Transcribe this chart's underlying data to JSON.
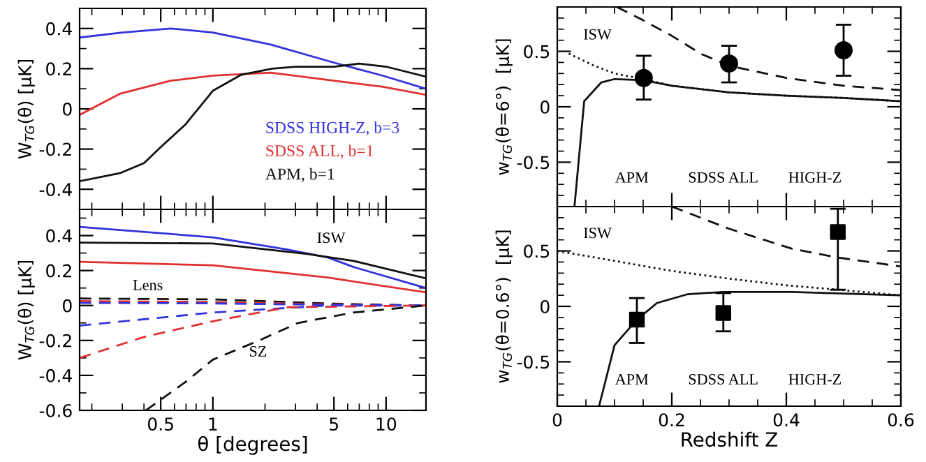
{
  "chart_data": [
    {
      "type": "line",
      "ylabel": "W$_{TG}$(θ) [μK]",
      "log": "x",
      "xlim": [
        0.17,
        17
      ],
      "xticks": [
        0.5,
        1,
        5,
        10
      ],
      "ylim": [
        -0.5,
        0.5
      ],
      "yticks": [
        -0.4,
        -0.2,
        0,
        0.2,
        0.4
      ],
      "tick_labels": "y",
      "legend": "bottom right",
      "grid": false,
      "series": [
        {
          "name": "SDSS HIGH-Z, b=3",
          "color": "#3333dd",
          "line_style": "solid",
          "x": [
            0.17,
            0.3,
            0.57,
            1,
            2.16,
            5,
            9.6,
            17
          ],
          "values": [
            0.355,
            0.38,
            0.4,
            0.38,
            0.32,
            0.23,
            0.165,
            0.1
          ]
        },
        {
          "name": "SDSS ALL, b=1",
          "color": "#e03030",
          "line_style": "solid",
          "x": [
            0.17,
            0.29,
            0.57,
            1,
            2.16,
            5,
            9.6,
            17
          ],
          "values": [
            -0.03,
            0.075,
            0.14,
            0.165,
            0.18,
            0.14,
            0.11,
            0.07
          ]
        },
        {
          "name": "APM, b=1",
          "color": "#111111",
          "line_style": "solid",
          "x": [
            0.17,
            0.29,
            0.4,
            0.5,
            0.69,
            1,
            1.46,
            2.2,
            3,
            5,
            7,
            10,
            17
          ],
          "values": [
            -0.36,
            -0.32,
            -0.27,
            -0.19,
            -0.08,
            0.09,
            0.17,
            0.2,
            0.21,
            0.21,
            0.225,
            0.21,
            0.16
          ]
        }
      ]
    },
    {
      "type": "line",
      "ylabel": "W$_{TG}$(θ) [μK]",
      "xlabel": "θ [degrees]",
      "log": "x",
      "xlim": [
        0.17,
        17
      ],
      "xticks": [
        0.5,
        1,
        5,
        10
      ],
      "ylim": [
        -0.6,
        0.55
      ],
      "yticks": [
        -0.6,
        -0.4,
        -0.2,
        0,
        0.2,
        0.4
      ],
      "grid": false,
      "annotations": [
        "ISW",
        "Lens",
        "SZ"
      ],
      "series": [
        {
          "color": "#3333dd",
          "line_style": "solid",
          "x": [
            0.17,
            1,
            2.7,
            4.6,
            6.5,
            17
          ],
          "values": [
            0.45,
            0.39,
            0.32,
            0.275,
            0.22,
            0.1
          ]
        },
        {
          "color": "#111111",
          "line_style": "solid",
          "x": [
            0.17,
            1,
            3.5,
            6.5,
            17
          ],
          "values": [
            0.36,
            0.355,
            0.295,
            0.255,
            0.155
          ]
        },
        {
          "color": "#e03030",
          "line_style": "solid",
          "x": [
            0.17,
            1,
            4.6,
            17
          ],
          "values": [
            0.25,
            0.23,
            0.16,
            0.075
          ]
        },
        {
          "color": "#111111",
          "line_style": "dashed",
          "x": [
            0.17,
            1,
            5,
            17
          ],
          "values": [
            0.04,
            0.035,
            0.01,
            0
          ]
        },
        {
          "color": "#e03030",
          "line_style": "dashed",
          "x": [
            0.17,
            1,
            5,
            17
          ],
          "values": [
            0.025,
            0.02,
            0.005,
            0
          ]
        },
        {
          "color": "#3333dd",
          "line_style": "dashed",
          "x": [
            0.17,
            1,
            5,
            17
          ],
          "values": [
            0.015,
            0.012,
            0.003,
            0
          ]
        },
        {
          "color": "#3333dd",
          "line_style": "dashed",
          "x": [
            0.17,
            1,
            4.6,
            17
          ],
          "values": [
            -0.115,
            -0.04,
            0,
            0
          ]
        },
        {
          "color": "#e03030",
          "line_style": "dashed",
          "x": [
            0.17,
            0.4,
            1,
            2.7,
            17
          ],
          "values": [
            -0.3,
            -0.18,
            -0.09,
            -0.01,
            0
          ]
        },
        {
          "color": "#111111",
          "line_style": "dashed",
          "x": [
            0.41,
            0.69,
            1,
            1.85,
            3.1,
            6.5,
            17
          ],
          "values": [
            -0.6,
            -0.44,
            -0.31,
            -0.2,
            -0.1,
            -0.04,
            0
          ]
        }
      ]
    },
    {
      "type": "line",
      "ylabel": "w$_{TG}$(θ=6°)  [μK]",
      "xlim": [
        0,
        0.6
      ],
      "xticks": [
        0,
        0.2,
        0.4,
        0.6
      ],
      "ylim": [
        -0.9,
        0.9
      ],
      "yticks": [
        -0.5,
        0,
        0.5
      ],
      "tick_labels": "y",
      "grid": false,
      "annotations": [
        "ISW",
        "APM",
        "SDSS ALL",
        "HIGH-Z"
      ],
      "series": [
        {
          "color": "#111111",
          "line_style": "solid",
          "x": [
            0.03,
            0.047,
            0.077,
            0.1,
            0.15,
            0.2,
            0.3,
            0.4,
            0.5,
            0.6
          ],
          "values": [
            -0.9,
            0.05,
            0.22,
            0.25,
            0.24,
            0.19,
            0.13,
            0.1,
            0.08,
            0.05
          ]
        },
        {
          "color": "#111111",
          "line_style": "dotted",
          "x": [
            0.02,
            0.06,
            0.1,
            0.15,
            0.2,
            0.3,
            0.4,
            0.5,
            0.6
          ],
          "values": [
            0.48,
            0.38,
            0.3,
            0.25,
            0.19,
            0.13,
            0.1,
            0.08,
            0.05
          ]
        },
        {
          "color": "#111111",
          "line_style": "dashed",
          "x": [
            0.104,
            0.15,
            0.2,
            0.25,
            0.3,
            0.4,
            0.5,
            0.6
          ],
          "values": [
            0.9,
            0.78,
            0.64,
            0.48,
            0.37,
            0.26,
            0.19,
            0.15
          ]
        },
        {
          "type": "scatter",
          "color": "#000000",
          "marker": "circle",
          "x": [
            0.151,
            0.3,
            0.5
          ],
          "values": [
            0.26,
            0.39,
            0.51
          ],
          "errors": [
            [
              0.065,
              0.46
            ],
            [
              0.22,
              0.55
            ],
            [
              0.28,
              0.74
            ]
          ]
        }
      ]
    },
    {
      "type": "line",
      "ylabel": "w$_{TG}$(θ=0.6°)  [μK]",
      "xlabel": "Redshift Z",
      "xlim": [
        0,
        0.6
      ],
      "xticks": [
        0,
        0.2,
        0.4,
        0.6
      ],
      "ylim": [
        -0.9,
        0.9
      ],
      "yticks": [
        -0.5,
        0,
        0.5
      ],
      "grid": false,
      "annotations": [
        "ISW",
        "APM",
        "SDSS ALL",
        "HIGH-Z"
      ],
      "series": [
        {
          "color": "#111111",
          "line_style": "solid",
          "x": [
            0.073,
            0.1,
            0.139,
            0.174,
            0.228,
            0.29,
            0.41,
            0.6
          ],
          "values": [
            -0.9,
            -0.35,
            -0.12,
            0.03,
            0.11,
            0.13,
            0.13,
            0.1
          ]
        },
        {
          "color": "#111111",
          "line_style": "dotted",
          "x": [
            0.0,
            0.1,
            0.2,
            0.3,
            0.4,
            0.49,
            0.6
          ],
          "values": [
            0.5,
            0.41,
            0.32,
            0.25,
            0.19,
            0.15,
            0.1
          ]
        },
        {
          "color": "#111111",
          "line_style": "dashed",
          "x": [
            0.2,
            0.26,
            0.3,
            0.41,
            0.49,
            0.6
          ],
          "values": [
            0.9,
            0.78,
            0.7,
            0.52,
            0.44,
            0.36
          ]
        },
        {
          "type": "scatter",
          "color": "#000000",
          "marker": "square",
          "x": [
            0.139,
            0.29,
            0.49
          ],
          "values": [
            -0.12,
            -0.06,
            0.67
          ],
          "errors": [
            [
              -0.33,
              0.075
            ],
            [
              -0.225,
              0.12
            ],
            [
              0.15,
              0.88
            ]
          ]
        }
      ]
    }
  ]
}
